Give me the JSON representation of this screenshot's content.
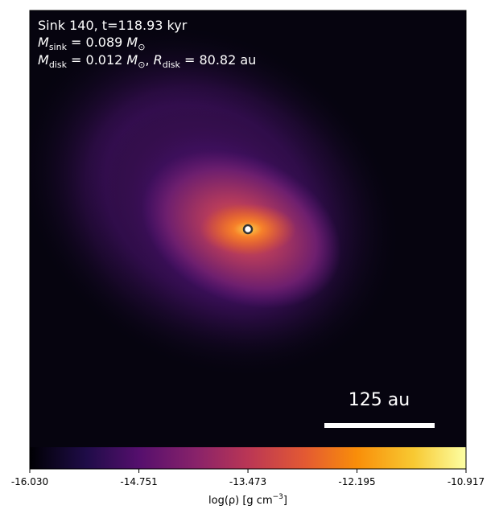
{
  "chart_data": {
    "type": "image",
    "annotations": [
      [
        "Sink 140, t=118.93 kyr"
      ],
      [
        "M",
        "sink",
        " = 0.089 ",
        "M",
        "⊙"
      ],
      [
        "M",
        "disk",
        " = 0.012 ",
        "M",
        "⊙",
        ", ",
        "R",
        "disk",
        " = 80.82 au"
      ]
    ],
    "scale_bar_label": "125 au",
    "colorbar_label": [
      "log(ρ) [g cm",
      "−3",
      "]"
    ],
    "clim": [
      -16.03,
      -10.917
    ],
    "cticks": [
      {
        "value": -16.03,
        "label": "-16.030"
      },
      {
        "value": -14.751,
        "label": "-14.751"
      },
      {
        "value": -13.473,
        "label": "-13.473"
      },
      {
        "value": -12.195,
        "label": "-12.195"
      },
      {
        "value": -10.917,
        "label": "-10.917"
      }
    ]
  }
}
